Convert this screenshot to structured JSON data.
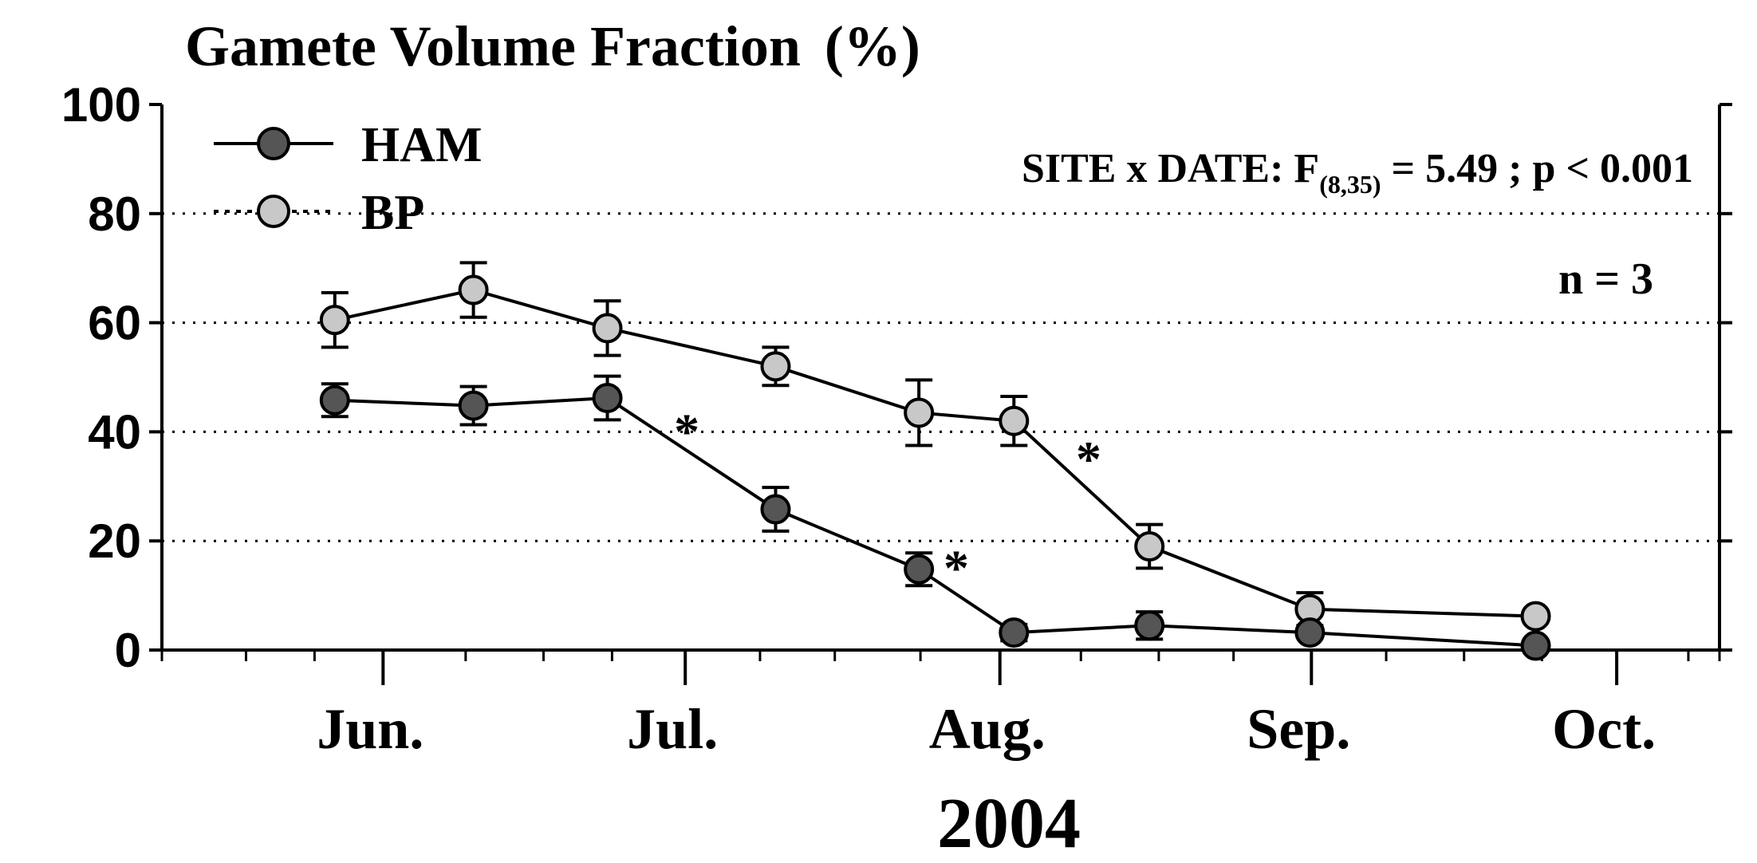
{
  "chart_data": {
    "type": "line",
    "title": "Gamete Volume Fraction",
    "title_unit": "(%)",
    "xlabel": "2004",
    "ylabel": "",
    "ylim": [
      0,
      100
    ],
    "yticks": [
      "0",
      "20",
      "40",
      "60",
      "80",
      "100"
    ],
    "xlim": [
      0,
      1000
    ],
    "month_ticks": [
      {
        "label": "Jun.",
        "x": 142
      },
      {
        "label": "Jul.",
        "x": 336
      },
      {
        "label": "Aug.",
        "x": 538
      },
      {
        "label": "Sep.",
        "x": 738
      },
      {
        "label": "Oct.",
        "x": 934
      }
    ],
    "minor_ticks": [
      0,
      54,
      98,
      142,
      195,
      245,
      289,
      336,
      384,
      432,
      487,
      538,
      590,
      640,
      688,
      738,
      786,
      836,
      886,
      934,
      980,
      1000
    ],
    "grid_y": [
      20,
      40,
      60,
      80
    ],
    "series": [
      {
        "name": "HAM",
        "color": "#555555",
        "x": [
          111,
          200,
          286,
          394,
          486,
          547,
          634,
          737,
          882
        ],
        "values": [
          45.8,
          44.8,
          46.2,
          25.8,
          14.8,
          3.2,
          4.5,
          3.2,
          0.8
        ],
        "errors": [
          3,
          3.5,
          4,
          4,
          3,
          1.5,
          2.5,
          0,
          0
        ]
      },
      {
        "name": "BP",
        "color": "#c8c8c8",
        "x": [
          111,
          200,
          286,
          394,
          486,
          547,
          634,
          737,
          882
        ],
        "values": [
          60.5,
          66.0,
          59.0,
          52.0,
          43.5,
          42.0,
          19.0,
          7.5,
          6.2
        ],
        "errors": [
          5,
          5,
          5,
          3.5,
          6,
          4.5,
          4,
          3,
          0
        ]
      }
    ],
    "significance": [
      {
        "label": "*",
        "x": 337,
        "y": 41
      },
      {
        "label": "*",
        "x": 510,
        "y": 16
      },
      {
        "label": "*",
        "x": 595,
        "y": 36
      }
    ],
    "stat_text": {
      "prefix": "SITE x DATE:   F",
      "subscript": "(8,35)",
      "suffix": " = 5.49 ;  p < 0.001"
    },
    "n_text": "n = 3"
  }
}
